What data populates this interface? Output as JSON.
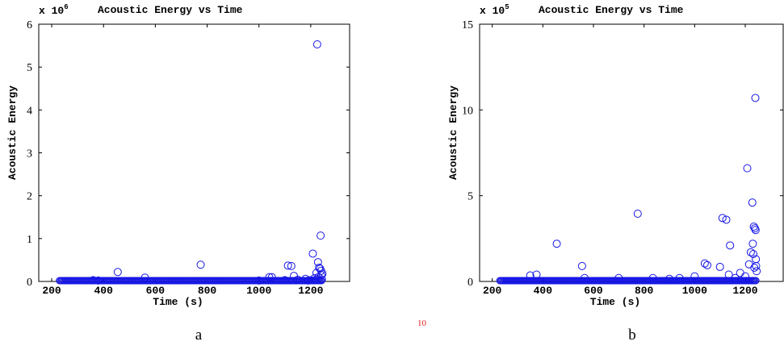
{
  "chart_data": [
    {
      "type": "scatter",
      "title": "Acoustic Energy vs Time",
      "exponent_label": {
        "base": "x 10",
        "exp": "6"
      },
      "xlabel": "Time (s)",
      "ylabel": "Acoustic Energy",
      "xlim": [
        150,
        1350
      ],
      "ylim": [
        0,
        6
      ],
      "xticks": [
        200,
        400,
        600,
        800,
        1000,
        1200
      ],
      "yticks": [
        0,
        1,
        2,
        3,
        4,
        5,
        6
      ],
      "marker": "open-circle",
      "color": "#1515e6",
      "caption": "a",
      "baseline_band": {
        "x_start": 230,
        "x_end": 1245,
        "y": 0.0
      },
      "points": [
        [
          455,
          0.22
        ],
        [
          560,
          0.09
        ],
        [
          775,
          0.39
        ],
        [
          1040,
          0.1
        ],
        [
          1050,
          0.1
        ],
        [
          1112,
          0.37
        ],
        [
          1125,
          0.36
        ],
        [
          1135,
          0.13
        ],
        [
          1208,
          0.65
        ],
        [
          1215,
          0.08
        ],
        [
          1222,
          0.2
        ],
        [
          1225,
          5.53
        ],
        [
          1228,
          0.45
        ],
        [
          1232,
          0.32
        ],
        [
          1236,
          0.3
        ],
        [
          1238,
          1.07
        ],
        [
          1240,
          0.25
        ],
        [
          1241,
          0.15
        ],
        [
          1243,
          0.05
        ],
        [
          1245,
          0.18
        ],
        [
          1230,
          0.1
        ],
        [
          1220,
          0.04
        ],
        [
          1200,
          0.03
        ],
        [
          1190,
          0.02
        ],
        [
          1180,
          0.06
        ],
        [
          360,
          0.03
        ],
        [
          380,
          0.02
        ],
        [
          1150,
          0.04
        ],
        [
          1100,
          0.03
        ],
        [
          1000,
          0.02
        ]
      ]
    },
    {
      "type": "scatter",
      "title": "Acoustic Energy vs Time",
      "exponent_label": {
        "base": "x 10",
        "exp": "5"
      },
      "xlabel": "Time (s)",
      "ylabel": "Acoustic Energy",
      "xlim": [
        150,
        1350
      ],
      "ylim": [
        0,
        15
      ],
      "xticks": [
        200,
        400,
        600,
        800,
        1000,
        1200
      ],
      "yticks": [
        0,
        5,
        10,
        15
      ],
      "marker": "open-circle",
      "color": "#1515e6",
      "caption": "b",
      "baseline_band": {
        "x_start": 230,
        "x_end": 1245,
        "y": 0.0
      },
      "points": [
        [
          350,
          0.35
        ],
        [
          375,
          0.4
        ],
        [
          455,
          2.2
        ],
        [
          555,
          0.9
        ],
        [
          565,
          0.2
        ],
        [
          775,
          3.95
        ],
        [
          835,
          0.2
        ],
        [
          900,
          0.15
        ],
        [
          940,
          0.2
        ],
        [
          1040,
          1.05
        ],
        [
          1050,
          0.95
        ],
        [
          1100,
          0.85
        ],
        [
          1110,
          3.7
        ],
        [
          1125,
          3.6
        ],
        [
          1140,
          2.1
        ],
        [
          1135,
          0.4
        ],
        [
          1208,
          6.6
        ],
        [
          1215,
          1.0
        ],
        [
          1222,
          1.7
        ],
        [
          1228,
          4.6
        ],
        [
          1230,
          2.2
        ],
        [
          1232,
          1.6
        ],
        [
          1234,
          3.2
        ],
        [
          1236,
          0.8
        ],
        [
          1238,
          3.1
        ],
        [
          1240,
          10.7
        ],
        [
          1241,
          3.0
        ],
        [
          1242,
          1.3
        ],
        [
          1243,
          0.9
        ],
        [
          1245,
          0.6
        ],
        [
          1200,
          0.3
        ],
        [
          1180,
          0.5
        ],
        [
          1160,
          0.2
        ],
        [
          1000,
          0.3
        ],
        [
          700,
          0.2
        ]
      ]
    }
  ],
  "page": {
    "fragment_text": "10"
  }
}
